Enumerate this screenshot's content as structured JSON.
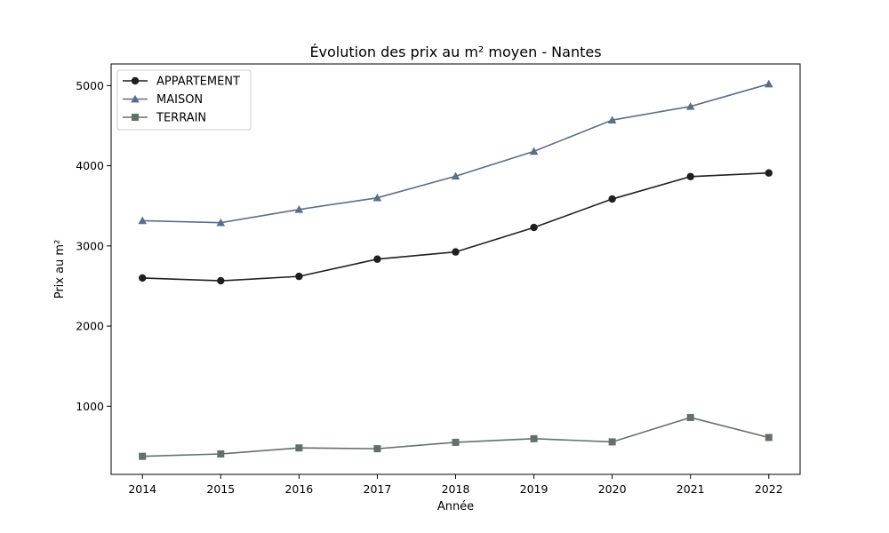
{
  "chart_data": {
    "type": "line",
    "title": "Évolution des prix au m² moyen - Nantes",
    "xlabel": "Année",
    "ylabel": "Prix au m²",
    "x": [
      2014,
      2015,
      2016,
      2017,
      2018,
      2019,
      2020,
      2021,
      2022
    ],
    "x_ticks": [
      "2014",
      "2015",
      "2016",
      "2017",
      "2018",
      "2019",
      "2020",
      "2021",
      "2022"
    ],
    "y_ticks": [
      1000,
      2000,
      3000,
      4000,
      5000
    ],
    "xlim": [
      2013.6,
      2022.4
    ],
    "ylim": [
      150,
      5270
    ],
    "grid": false,
    "legend_position": "top-left",
    "series": [
      {
        "name": "APPARTEMENT",
        "marker": "circle",
        "color": "#1f1f1f",
        "values": [
          2600,
          2565,
          2620,
          2835,
          2925,
          3230,
          3585,
          3865,
          3910
        ]
      },
      {
        "name": "MAISON",
        "marker": "triangle",
        "color": "#5c6e87",
        "values": [
          3315,
          3290,
          3455,
          3600,
          3870,
          4180,
          4570,
          4740,
          5020
        ]
      },
      {
        "name": "TERRAIN",
        "marker": "square",
        "color": "#627068",
        "values": [
          375,
          405,
          480,
          470,
          550,
          595,
          555,
          860,
          610
        ]
      }
    ]
  }
}
